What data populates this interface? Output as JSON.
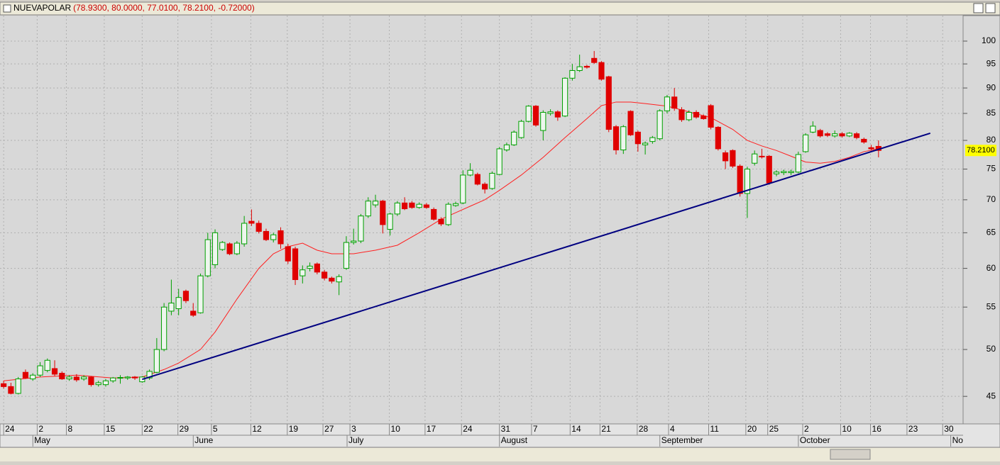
{
  "chart_data": {
    "type": "candlestick",
    "title": "NUEVAPOLAR",
    "subtitle": "(78.9300, 80.0000, 77.0100, 78.2100, -0.72000)",
    "open": [
      46.3,
      46.0,
      45.3,
      47.5,
      46.8,
      47.2,
      47.7,
      47.9,
      47.4,
      46.8,
      47.0,
      46.8,
      47.0,
      46.2,
      46.2,
      46.6,
      46.9,
      46.9,
      47.0,
      46.5,
      46.9,
      47.5,
      50.0,
      54.5,
      54.8,
      57.0,
      54.5,
      54.3,
      59.0,
      60.5,
      62.6,
      63.4,
      62.0,
      63.4,
      66.7,
      66.4,
      65.2,
      64.0,
      65.3,
      63.0,
      62.7,
      59.0,
      60.0,
      60.6,
      59.5,
      58.7,
      58.2,
      60.0,
      63.6,
      63.8,
      67.5,
      69.2,
      69.8,
      65.5,
      67.8,
      69.5,
      69.5,
      68.8,
      69.2,
      68.5,
      67.0,
      66.2,
      69.1,
      69.5,
      74.0,
      74.1,
      72.5,
      71.8,
      74.1,
      78.3,
      79.2,
      80.5,
      83.5,
      86.4,
      81.8,
      85.0,
      85.3,
      84.5,
      92.0,
      93.6,
      94.5,
      96.2,
      95.3,
      92.3,
      82.5,
      78.3,
      85.4,
      81.5,
      79.2,
      79.8,
      80.3,
      85.5,
      88.2,
      85.7,
      83.8,
      85.2,
      84.5,
      86.5,
      82.4,
      77.8,
      78.2,
      75.5,
      71.0,
      76.0,
      77.2,
      77.2,
      74.2,
      74.4,
      74.4,
      74.5,
      78.0,
      81.5,
      81.8,
      81.2,
      80.8,
      81.2,
      80.8,
      81.2,
      80.2,
      78.7,
      78.93
    ],
    "high": [
      46.6,
      46.4,
      47.0,
      47.8,
      47.4,
      48.6,
      49.0,
      48.8,
      47.6,
      47.2,
      47.3,
      47.2,
      47.1,
      46.6,
      46.8,
      47.0,
      47.2,
      47.1,
      47.1,
      47.1,
      47.8,
      51.3,
      55.5,
      58.5,
      57.3,
      57.2,
      55.5,
      59.3,
      65.0,
      65.5,
      63.8,
      63.6,
      63.8,
      67.5,
      68.5,
      66.8,
      65.6,
      65.0,
      65.8,
      63.4,
      63.0,
      60.4,
      60.8,
      60.8,
      59.8,
      58.9,
      59.2,
      64.5,
      65.6,
      67.8,
      70.4,
      70.8,
      70.0,
      68.0,
      69.8,
      70.4,
      69.8,
      69.6,
      69.5,
      68.8,
      67.3,
      69.6,
      69.7,
      74.8,
      76.0,
      74.4,
      72.8,
      74.6,
      78.8,
      79.6,
      81.8,
      83.8,
      86.6,
      86.6,
      85.6,
      85.8,
      85.6,
      92.2,
      95.0,
      97.0,
      94.8,
      97.8,
      95.6,
      92.5,
      82.8,
      82.8,
      85.6,
      81.8,
      79.8,
      80.8,
      85.8,
      88.6,
      90.0,
      86.2,
      85.6,
      85.6,
      84.8,
      86.8,
      82.6,
      78.2,
      78.4,
      75.8,
      75.4,
      78.2,
      78.5,
      77.4,
      74.8,
      74.9,
      74.9,
      78.0,
      81.3,
      83.5,
      82.1,
      81.5,
      81.8,
      81.5,
      81.5,
      81.5,
      80.5,
      79.2,
      80.0
    ],
    "low": [
      45.8,
      45.2,
      45.2,
      46.8,
      46.6,
      47.0,
      47.5,
      47.1,
      46.7,
      46.6,
      46.5,
      46.6,
      46.0,
      46.0,
      46.0,
      46.4,
      46.3,
      46.7,
      46.7,
      46.4,
      46.7,
      47.4,
      49.8,
      54.0,
      54.0,
      55.5,
      53.8,
      54.2,
      58.8,
      60.0,
      62.4,
      61.8,
      61.8,
      63.0,
      66.0,
      64.9,
      63.8,
      63.6,
      62.7,
      60.6,
      57.8,
      58.0,
      59.6,
      59.2,
      58.4,
      58.0,
      56.5,
      59.8,
      63.3,
      63.5,
      67.2,
      68.8,
      64.9,
      64.6,
      67.5,
      68.4,
      68.6,
      68.6,
      68.6,
      66.8,
      66.0,
      66.0,
      68.9,
      69.3,
      73.8,
      72.3,
      71.0,
      71.6,
      74.0,
      78.0,
      79.0,
      80.3,
      83.3,
      82.5,
      80.0,
      84.6,
      83.6,
      84.3,
      91.5,
      93.3,
      94.0,
      95.0,
      91.5,
      81.5,
      77.5,
      77.6,
      80.8,
      78.0,
      77.5,
      79.4,
      80.0,
      85.0,
      85.5,
      83.4,
      83.5,
      84.0,
      83.8,
      82.0,
      78.2,
      75.0,
      75.2,
      70.5,
      67.2,
      75.6,
      76.8,
      72.4,
      73.8,
      74.0,
      74.0,
      74.3,
      77.8,
      81.3,
      80.5,
      80.6,
      80.5,
      80.5,
      80.6,
      80.2,
      79.4,
      78.2,
      77.01
    ],
    "close": [
      46.0,
      45.3,
      46.8,
      46.9,
      47.2,
      48.2,
      48.8,
      47.3,
      46.8,
      47.0,
      46.7,
      47.0,
      46.2,
      46.4,
      46.6,
      46.9,
      46.95,
      47.0,
      46.9,
      47.0,
      47.6,
      50.0,
      55.0,
      55.5,
      56.2,
      55.8,
      54.0,
      59.0,
      64.0,
      65.0,
      63.6,
      62.0,
      63.5,
      66.4,
      66.4,
      65.2,
      64.0,
      64.7,
      63.4,
      61.0,
      58.5,
      59.8,
      60.3,
      59.5,
      58.7,
      58.3,
      58.9,
      63.6,
      63.8,
      67.5,
      69.8,
      69.8,
      66.2,
      67.8,
      69.5,
      68.6,
      68.8,
      69.3,
      68.8,
      67.0,
      66.3,
      69.3,
      69.4,
      74.0,
      74.8,
      72.5,
      71.7,
      74.3,
      78.5,
      79.2,
      81.5,
      83.5,
      86.4,
      82.8,
      85.2,
      85.3,
      84.3,
      92.0,
      93.6,
      94.4,
      94.3,
      95.3,
      91.8,
      82.0,
      78.3,
      82.5,
      81.0,
      79.4,
      79.5,
      80.5,
      85.5,
      88.2,
      86.0,
      83.8,
      85.2,
      84.3,
      84.0,
      82.4,
      78.5,
      76.4,
      75.5,
      71.0,
      75.0,
      77.6,
      77.1,
      72.7,
      74.5,
      74.6,
      74.6,
      77.5,
      81.0,
      82.6,
      80.8,
      80.9,
      81.2,
      80.8,
      81.3,
      80.5,
      79.7,
      78.5,
      78.21
    ],
    "up_color": "#00a000",
    "down_color": "#e00000",
    "moving_average": {
      "color": "#ff2020",
      "x": [
        0,
        5,
        10,
        15,
        19,
        22,
        24,
        27,
        29,
        32,
        35,
        37,
        39,
        41,
        43,
        45,
        48,
        51,
        54,
        57,
        60,
        62,
        64,
        66,
        68,
        71,
        74,
        77,
        80,
        82,
        84,
        86,
        88,
        91,
        94,
        97,
        100,
        102,
        104,
        106,
        108,
        110,
        112,
        114,
        116,
        118,
        120
      ],
      "values": [
        46.6,
        47.0,
        47.2,
        46.9,
        47.0,
        47.8,
        48.5,
        50,
        52,
        56,
        60,
        62,
        63,
        63.5,
        62.5,
        62,
        62,
        62.5,
        63.2,
        65,
        67,
        68,
        69,
        70,
        71.5,
        74,
        77,
        80.5,
        84,
        86.5,
        87.2,
        87.2,
        86.9,
        86.4,
        85.3,
        84.2,
        82,
        80,
        79,
        78.2,
        77.2,
        76.2,
        76,
        76.3,
        77,
        78,
        78.5
      ]
    },
    "trendline": {
      "color": "#000080",
      "x": [
        19.0,
        127.1
      ],
      "values": [
        46.75,
        81.3
      ]
    },
    "last_price": {
      "value": 78.21,
      "label": "78.2100"
    },
    "xlim": [
      -0.5,
      131.6
    ],
    "xticks": [
      {
        "value": 0,
        "label": "24"
      },
      {
        "value": 4.6,
        "label": "2"
      },
      {
        "value": 8.6,
        "label": "8"
      },
      {
        "value": 13.8,
        "label": "15"
      },
      {
        "value": 19.0,
        "label": "22"
      },
      {
        "value": 23.9,
        "label": "29"
      },
      {
        "value": 28.5,
        "label": "5"
      },
      {
        "value": 33.9,
        "label": "12"
      },
      {
        "value": 38.9,
        "label": "19"
      },
      {
        "value": 43.8,
        "label": "27"
      },
      {
        "value": 47.5,
        "label": "3"
      },
      {
        "value": 52.9,
        "label": "10"
      },
      {
        "value": 57.8,
        "label": "17"
      },
      {
        "value": 62.8,
        "label": "24"
      },
      {
        "value": 68.0,
        "label": "31"
      },
      {
        "value": 72.4,
        "label": "7"
      },
      {
        "value": 77.7,
        "label": "14"
      },
      {
        "value": 81.8,
        "label": "21"
      },
      {
        "value": 86.9,
        "label": "28"
      },
      {
        "value": 91.2,
        "label": "4"
      },
      {
        "value": 96.7,
        "label": "11"
      },
      {
        "value": 101.8,
        "label": "20"
      },
      {
        "value": 104.8,
        "label": "25"
      },
      {
        "value": 109.6,
        "label": "2"
      },
      {
        "value": 114.8,
        "label": "10"
      },
      {
        "value": 118.9,
        "label": "16"
      },
      {
        "value": 123.9,
        "label": "23"
      },
      {
        "value": 128.8,
        "label": "30"
      }
    ],
    "months": [
      {
        "value": 4.2,
        "label": "May"
      },
      {
        "value": 26.2,
        "label": "June"
      },
      {
        "value": 47.3,
        "label": "July"
      },
      {
        "value": 68.2,
        "label": "August"
      },
      {
        "value": 90.2,
        "label": "September"
      },
      {
        "value": 109.2,
        "label": "October"
      },
      {
        "value": 130.1,
        "label": "No"
      }
    ],
    "ylim": [
      42.3,
      105.9
    ],
    "log_scale": true,
    "yticks": [
      45,
      50,
      55,
      60,
      65,
      70,
      75,
      80,
      85,
      90,
      95,
      100
    ],
    "grid": true
  }
}
